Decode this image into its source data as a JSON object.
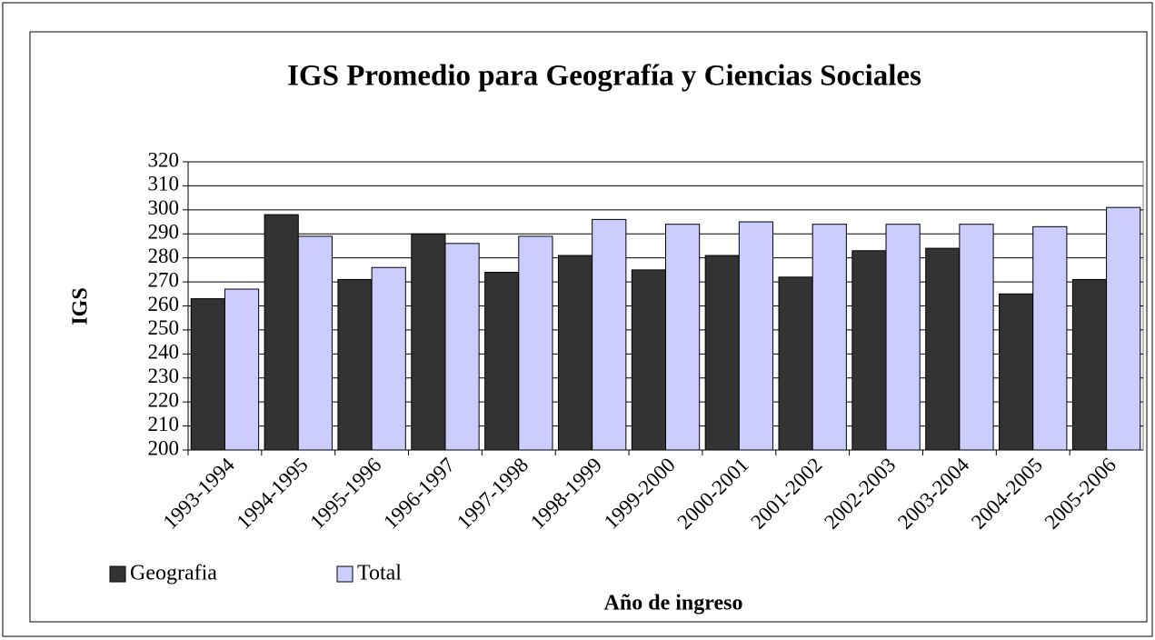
{
  "chart_data": {
    "type": "bar",
    "title": "IGS Promedio para  Geografía y Ciencias Sociales",
    "y_label": "IGS",
    "x_label": "Año de ingreso",
    "categories": [
      "1993-1994",
      "1994-1995",
      "1995-1996",
      "1996-1997",
      "1997-1998",
      "1998-1999",
      "1999-2000",
      "2000-2001",
      "2001-2002",
      "2002-2003",
      "2003-2004",
      "2004-2005",
      "2005-2006"
    ],
    "series": [
      {
        "name": "Geografia",
        "color": "#333333",
        "values": [
          263,
          298,
          271,
          290,
          274,
          281,
          275,
          281,
          272,
          283,
          284,
          265,
          271
        ]
      },
      {
        "name": "Total",
        "color": "#ccccff",
        "values": [
          267,
          289,
          276,
          286,
          289,
          296,
          294,
          295,
          294,
          294,
          294,
          293,
          301
        ]
      }
    ],
    "ylim": [
      200,
      320
    ],
    "yticks": [
      200,
      210,
      220,
      230,
      240,
      250,
      260,
      270,
      280,
      290,
      300,
      310,
      320
    ],
    "grid": true,
    "legend": "bottom-left"
  }
}
